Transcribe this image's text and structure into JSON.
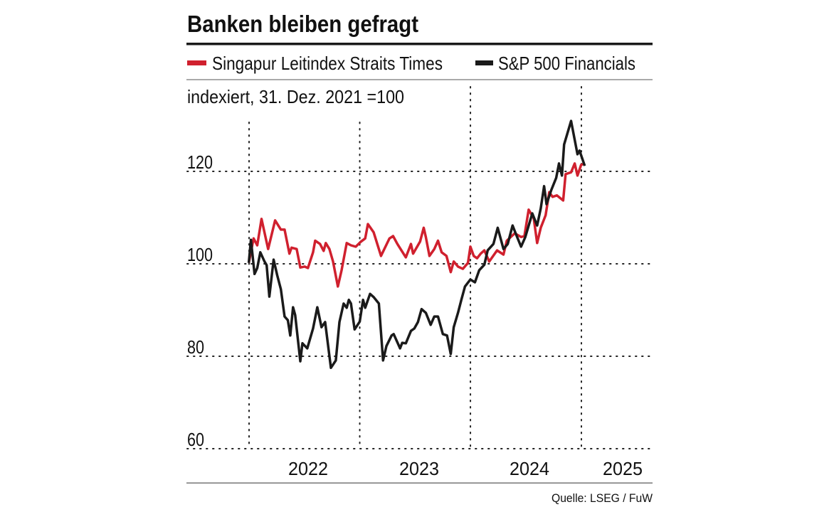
{
  "chart_data": {
    "type": "line",
    "title": "Banken bleiben gefragt",
    "subtitle": "indexiert, 31. Dez. 2021 =100",
    "source": "Quelle: LSEG / FuW",
    "ylim": [
      60,
      135
    ],
    "yticks": [
      "120",
      "100",
      "80",
      "60"
    ],
    "ytick_values": [
      120,
      100,
      80,
      60
    ],
    "xticks": [
      "2022",
      "2023",
      "2024",
      "2025"
    ],
    "xlim": [
      "2022-01-01",
      "2025-03-10"
    ],
    "grid": true,
    "legend_position": "top",
    "series": [
      {
        "name": "Singapur Leitindex Straits Times",
        "color": "#d0202e",
        "points": [
          [
            "2021-12-31",
            100.2
          ],
          [
            "2022-01-16",
            105.5
          ],
          [
            "2022-01-28",
            104
          ],
          [
            "2022-02-11",
            109.7
          ],
          [
            "2022-03-05",
            103.2
          ],
          [
            "2022-03-28",
            109.4
          ],
          [
            "2022-04-16",
            107.4
          ],
          [
            "2022-04-28",
            107.4
          ],
          [
            "2022-05-14",
            102.2
          ],
          [
            "2022-05-21",
            103.5
          ],
          [
            "2022-06-07",
            103.2
          ],
          [
            "2022-06-19",
            99.2
          ],
          [
            "2022-07-03",
            99.4
          ],
          [
            "2022-07-14",
            99.1
          ],
          [
            "2022-07-31",
            102.5
          ],
          [
            "2022-08-07",
            105
          ],
          [
            "2022-08-23",
            104.3
          ],
          [
            "2022-09-04",
            102.8
          ],
          [
            "2022-09-11",
            104.5
          ],
          [
            "2022-09-23",
            103.2
          ],
          [
            "2022-10-05",
            100.5
          ],
          [
            "2022-10-21",
            95.1
          ],
          [
            "2022-11-02",
            98.6
          ],
          [
            "2022-11-19",
            104.5
          ],
          [
            "2022-12-03",
            104
          ],
          [
            "2022-12-19",
            103.7
          ],
          [
            "2023-01-05",
            104.8
          ],
          [
            "2023-01-19",
            105.5
          ],
          [
            "2023-01-28",
            108.6
          ],
          [
            "2023-02-16",
            106.8
          ],
          [
            "2023-03-12",
            101.7
          ],
          [
            "2023-04-09",
            105.5
          ],
          [
            "2023-04-21",
            106
          ],
          [
            "2023-05-05",
            104.3
          ],
          [
            "2023-06-02",
            101.4
          ],
          [
            "2023-06-19",
            104.3
          ],
          [
            "2023-06-26",
            102.2
          ],
          [
            "2023-07-19",
            104.8
          ],
          [
            "2023-07-31",
            107.8
          ],
          [
            "2023-08-07",
            105.8
          ],
          [
            "2023-08-19",
            101.7
          ],
          [
            "2023-09-04",
            103.2
          ],
          [
            "2023-09-16",
            105
          ],
          [
            "2023-09-28",
            102.5
          ],
          [
            "2023-10-14",
            101.7
          ],
          [
            "2023-10-28",
            98.2
          ],
          [
            "2023-11-07",
            100.5
          ],
          [
            "2023-11-21",
            99.4
          ],
          [
            "2023-12-07",
            98.9
          ],
          [
            "2023-12-24",
            100.2
          ],
          [
            "2024-01-01",
            103.7
          ],
          [
            "2024-01-12",
            101.7
          ],
          [
            "2024-01-23",
            101.2
          ],
          [
            "2024-02-04",
            102.2
          ],
          [
            "2024-02-16",
            102.9
          ],
          [
            "2024-03-03",
            100.5
          ],
          [
            "2024-03-29",
            102.9
          ],
          [
            "2024-04-19",
            102
          ],
          [
            "2024-04-30",
            105
          ],
          [
            "2024-05-26",
            106.6
          ],
          [
            "2024-06-16",
            105.8
          ],
          [
            "2024-06-27",
            106
          ],
          [
            "2024-07-11",
            111.7
          ],
          [
            "2024-07-28",
            109.8
          ],
          [
            "2024-08-08",
            104.5
          ],
          [
            "2024-08-20",
            107.8
          ],
          [
            "2024-09-05",
            110.5
          ],
          [
            "2024-09-17",
            115.5
          ],
          [
            "2024-09-28",
            114.5
          ],
          [
            "2024-10-12",
            114.8
          ],
          [
            "2024-11-02",
            113.7
          ],
          [
            "2024-11-10",
            119.4
          ],
          [
            "2024-11-28",
            119.8
          ],
          [
            "2024-12-10",
            121.7
          ],
          [
            "2024-12-19",
            119.1
          ],
          [
            "2024-12-31",
            121.4
          ],
          [
            "2025-01-12",
            121.7
          ]
        ]
      },
      {
        "name": "S&P 500 Financials",
        "color": "#1a1a1a",
        "points": [
          [
            "2021-12-31",
            100.2
          ],
          [
            "2022-01-07",
            105.2
          ],
          [
            "2022-01-19",
            97.8
          ],
          [
            "2022-01-28",
            99.1
          ],
          [
            "2022-02-07",
            102.5
          ],
          [
            "2022-02-21",
            100.5
          ],
          [
            "2022-02-28",
            99.7
          ],
          [
            "2022-03-09",
            92.9
          ],
          [
            "2022-03-23",
            100.9
          ],
          [
            "2022-04-04",
            97.5
          ],
          [
            "2022-04-16",
            94.5
          ],
          [
            "2022-04-28",
            88.6
          ],
          [
            "2022-05-09",
            87.8
          ],
          [
            "2022-05-17",
            84.5
          ],
          [
            "2022-05-26",
            90.6
          ],
          [
            "2022-06-02",
            88.9
          ],
          [
            "2022-06-19",
            78.9
          ],
          [
            "2022-06-26",
            82.8
          ],
          [
            "2022-07-12",
            81.7
          ],
          [
            "2022-07-31",
            86
          ],
          [
            "2022-08-14",
            90.6
          ],
          [
            "2022-08-28",
            86.3
          ],
          [
            "2022-09-09",
            87.4
          ],
          [
            "2022-09-28",
            77.5
          ],
          [
            "2022-10-14",
            79.1
          ],
          [
            "2022-10-26",
            87.4
          ],
          [
            "2022-11-09",
            91.4
          ],
          [
            "2022-11-19",
            90.5
          ],
          [
            "2022-11-26",
            92.2
          ],
          [
            "2022-12-03",
            91.4
          ],
          [
            "2022-12-15",
            85.8
          ],
          [
            "2023-01-01",
            87.5
          ],
          [
            "2023-01-12",
            92.2
          ],
          [
            "2023-01-19",
            90.5
          ],
          [
            "2023-02-04",
            93.5
          ],
          [
            "2023-02-16",
            92.8
          ],
          [
            "2023-03-05",
            91.4
          ],
          [
            "2023-03-19",
            79.1
          ],
          [
            "2023-03-30",
            82.2
          ],
          [
            "2023-04-16",
            84.5
          ],
          [
            "2023-04-23",
            84.8
          ],
          [
            "2023-05-14",
            81.7
          ],
          [
            "2023-05-21",
            82.9
          ],
          [
            "2023-06-02",
            82.8
          ],
          [
            "2023-06-19",
            85.5
          ],
          [
            "2023-06-30",
            86
          ],
          [
            "2023-07-12",
            87.4
          ],
          [
            "2023-07-24",
            90.2
          ],
          [
            "2023-08-07",
            89.4
          ],
          [
            "2023-08-23",
            86.8
          ],
          [
            "2023-09-04",
            88.6
          ],
          [
            "2023-09-16",
            88.6
          ],
          [
            "2023-10-02",
            84.8
          ],
          [
            "2023-10-16",
            84.5
          ],
          [
            "2023-10-28",
            80.5
          ],
          [
            "2023-11-07",
            86.3
          ],
          [
            "2023-11-21",
            89.4
          ],
          [
            "2023-12-02",
            92.2
          ],
          [
            "2023-12-14",
            95.1
          ],
          [
            "2024-01-01",
            96.6
          ],
          [
            "2024-01-16",
            96
          ],
          [
            "2024-01-30",
            98.6
          ],
          [
            "2024-02-16",
            99.8
          ],
          [
            "2024-02-27",
            102.9
          ],
          [
            "2024-03-17",
            104.3
          ],
          [
            "2024-03-31",
            107.8
          ],
          [
            "2024-04-19",
            103.2
          ],
          [
            "2024-05-03",
            104.3
          ],
          [
            "2024-05-19",
            108.3
          ],
          [
            "2024-05-31",
            106.3
          ],
          [
            "2024-06-16",
            103.7
          ],
          [
            "2024-06-30",
            105.8
          ],
          [
            "2024-07-23",
            110.9
          ],
          [
            "2024-08-08",
            108.3
          ],
          [
            "2024-08-20",
            112
          ],
          [
            "2024-08-31",
            116.8
          ],
          [
            "2024-09-08",
            112.9
          ],
          [
            "2024-09-24",
            116
          ],
          [
            "2024-10-10",
            118.6
          ],
          [
            "2024-10-19",
            121.7
          ],
          [
            "2024-10-29",
            119.1
          ],
          [
            "2024-11-05",
            125.8
          ],
          [
            "2024-11-28",
            130.9
          ],
          [
            "2024-12-19",
            123.7
          ],
          [
            "2024-12-26",
            124.5
          ],
          [
            "2025-01-12",
            121.2
          ]
        ]
      }
    ]
  }
}
